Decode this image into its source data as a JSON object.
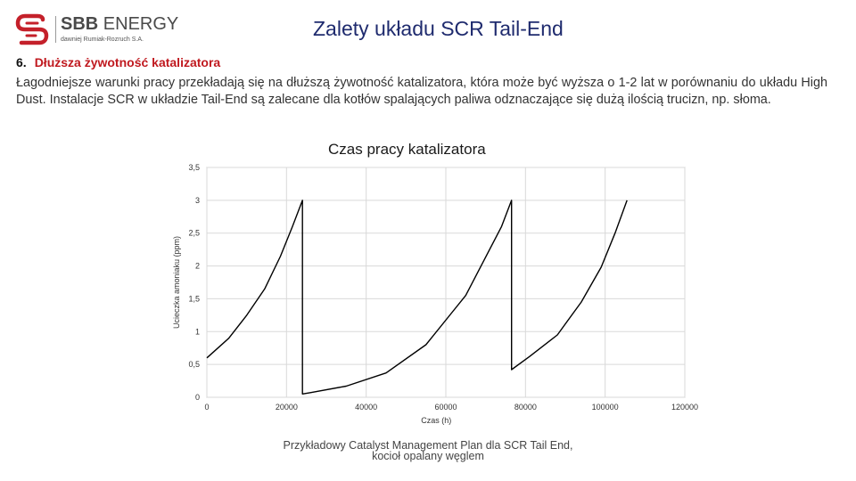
{
  "header": {
    "logo": {
      "brand_bold": "SBB",
      "brand_rest": " ENERGY",
      "subtitle": "dawniej Rumiak-Rozruch S.A.",
      "colors": {
        "mark": "#c4202a",
        "text": "#4a4a4a"
      }
    },
    "title": "Zalety układu SCR Tail-End"
  },
  "section": {
    "number": "6.",
    "heading": "Dłuższa żywotność katalizatora",
    "body": "Łagodniejsze warunki pracy przekładają się na dłuższą żywotność katalizatora, która może być wyższa o 1-2 lat w porównaniu do układu High Dust. Instalacje SCR w układzie Tail-End są zalecane dla kotłów spalających paliwa odznaczające się dużą ilością trucizn, np. słoma."
  },
  "chart_title": "Czas pracy katalizatora",
  "chart_data": {
    "type": "line",
    "xlabel": "Czas (h)",
    "ylabel": "Ucieczka amoniaku (ppm)",
    "xlim": [
      0,
      120000
    ],
    "ylim": [
      0,
      3.5
    ],
    "x_ticks": [
      0,
      20000,
      40000,
      60000,
      80000,
      100000,
      120000
    ],
    "x_tick_labels": [
      "0",
      "20000",
      "40000",
      "60000",
      "80000",
      "100000",
      "120000"
    ],
    "y_ticks": [
      0,
      0.5,
      1,
      1.5,
      2,
      2.5,
      3,
      3.5
    ],
    "y_tick_labels": [
      "0",
      "0,5",
      "1",
      "1,5",
      "2",
      "2,5",
      "3",
      "3,5"
    ],
    "grid": true,
    "line_color": "#000000",
    "series": [
      {
        "x": [
          0,
          5500,
          10000,
          14500,
          18500,
          21500,
          24000,
          24000,
          26000,
          35000,
          45000,
          55000,
          65000,
          74000,
          76500,
          76500,
          81000,
          88000,
          94000,
          99000,
          102500,
          105500
        ],
        "y": [
          0.6,
          0.9,
          1.25,
          1.65,
          2.15,
          2.6,
          3.0,
          0.05,
          0.07,
          0.17,
          0.37,
          0.8,
          1.55,
          2.6,
          3.0,
          0.42,
          0.62,
          0.95,
          1.45,
          1.98,
          2.5,
          3.0
        ]
      }
    ]
  },
  "caption": {
    "line1": "Przykładowy Catalyst Management Plan dla SCR Tail End,",
    "line2": "kocioł opalany węglem"
  }
}
